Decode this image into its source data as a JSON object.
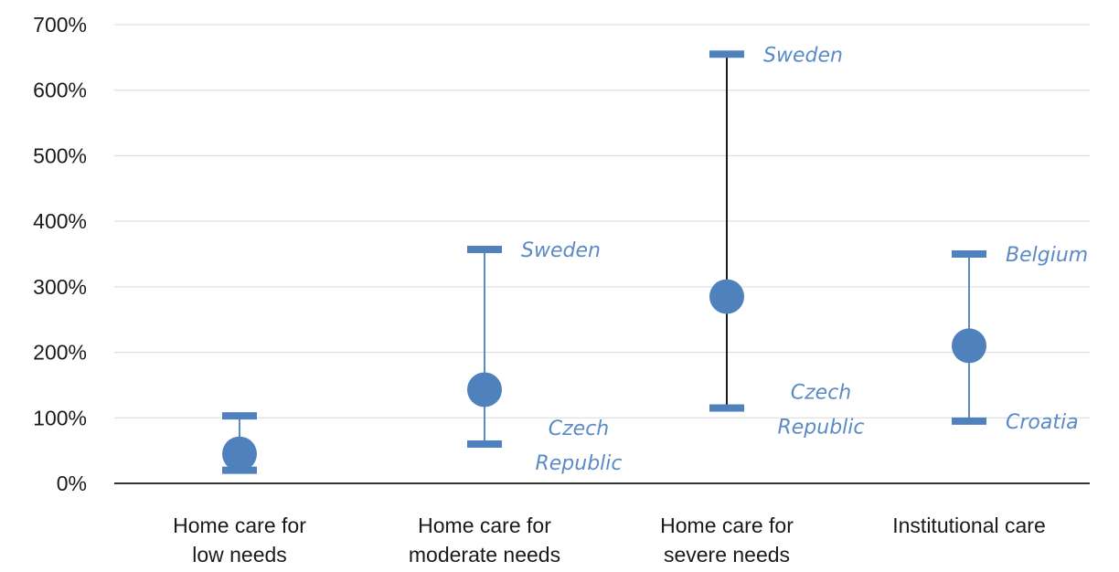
{
  "chart_data": {
    "type": "scatter",
    "grid": true,
    "ylim": [
      0,
      700
    ],
    "y_tick_labels": [
      "0%",
      "100%",
      "200%",
      "300%",
      "400%",
      "500%",
      "600%",
      "700%"
    ],
    "categories": [
      [
        "Home care for",
        "low needs"
      ],
      [
        "Home care for",
        "moderate needs"
      ],
      [
        "Home care for",
        "severe needs"
      ],
      [
        "Institutional care"
      ]
    ],
    "points": [
      {
        "value": 45,
        "min": 20,
        "max": 103,
        "whisker_color": "#5b8ac6"
      },
      {
        "value": 143,
        "min": 60,
        "max": 357,
        "whisker_color": "#5b8ac6",
        "min_label": [
          "Czech",
          "Republic"
        ],
        "max_label": [
          "Sweden"
        ]
      },
      {
        "value": 285,
        "min": 115,
        "max": 655,
        "whisker_color": "#1a1a1a",
        "min_label": [
          "Czech",
          "Republic"
        ],
        "max_label": [
          "Sweden"
        ]
      },
      {
        "value": 210,
        "min": 95,
        "max": 350,
        "whisker_color": "#5b8ac6",
        "min_label": [
          "Croatia"
        ],
        "max_label": [
          "Belgium"
        ]
      }
    ],
    "marker_color": "#4f81bd",
    "label_color": "#5b8ac6"
  }
}
